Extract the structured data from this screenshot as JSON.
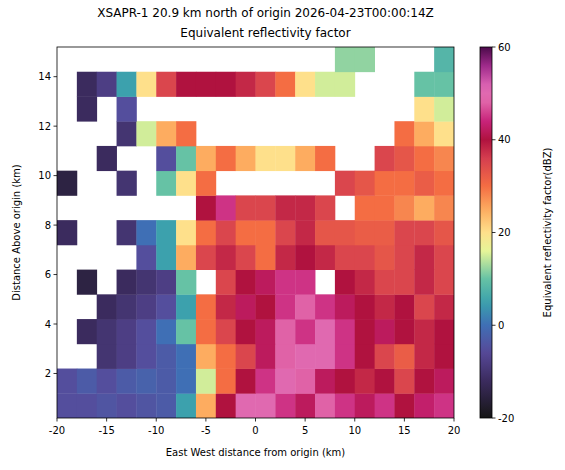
{
  "chart_data": {
    "type": "heatmap",
    "title": "XSAPR-1 20.9 km north of origin 2026-04-23T00:00:14Z",
    "subtitle": "Equivalent reflectivity factor",
    "x_label": "East West distance from origin (km)",
    "y_label": "Distance Above origin (km)",
    "xlim": [
      -20,
      20
    ],
    "xticks": [
      -20,
      -15,
      -10,
      -5,
      0,
      5,
      10,
      15,
      20
    ],
    "ylim": [
      0.2,
      15.2
    ],
    "yticks": [
      2,
      4,
      6,
      8,
      10,
      12,
      14
    ],
    "x_edges": [
      -20,
      -18,
      -16,
      -14,
      -12,
      -10,
      -8,
      -6,
      -4,
      -2,
      0,
      2,
      4,
      6,
      8,
      10,
      12,
      14,
      16,
      18,
      20
    ],
    "y_edges": [
      0.2,
      1.2,
      2.2,
      3.2,
      4.2,
      5.2,
      6.2,
      7.2,
      8.2,
      9.2,
      10.2,
      11.2,
      12.2,
      13.2,
      14.2,
      15.2
    ],
    "cells": [
      [
        -5,
        -5,
        -4,
        -5,
        -4,
        -3,
        5,
        25,
        40,
        50,
        50,
        45,
        42,
        48,
        45,
        42,
        45,
        40,
        43,
        45
      ],
      [
        -5,
        -3,
        -5,
        -3,
        -2,
        -3,
        0,
        15,
        30,
        40,
        45,
        50,
        48,
        42,
        40,
        38,
        40,
        35,
        40,
        42
      ],
      [
        null,
        null,
        -10,
        -8,
        -5,
        -3,
        0,
        25,
        30,
        35,
        42,
        48,
        50,
        50,
        45,
        40,
        35,
        32,
        38,
        40
      ],
      [
        null,
        -12,
        -10,
        -8,
        -5,
        0,
        10,
        30,
        35,
        40,
        42,
        48,
        45,
        50,
        45,
        40,
        42,
        40,
        38,
        40
      ],
      [
        null,
        null,
        -12,
        -10,
        -8,
        -5,
        5,
        30,
        38,
        42,
        40,
        45,
        48,
        45,
        42,
        40,
        38,
        40,
        35,
        38
      ],
      [
        null,
        -15,
        null,
        -12,
        -10,
        -8,
        10,
        null,
        35,
        40,
        42,
        45,
        45,
        null,
        40,
        38,
        35,
        35,
        38,
        35
      ],
      [
        null,
        null,
        null,
        null,
        -5,
        5,
        25,
        35,
        38,
        35,
        30,
        38,
        40,
        38,
        35,
        35,
        33,
        35,
        38,
        35
      ],
      [
        -12,
        null,
        null,
        -10,
        0,
        5,
        20,
        30,
        35,
        30,
        30,
        35,
        38,
        33,
        33,
        32,
        32,
        35,
        35,
        33
      ],
      [
        null,
        null,
        null,
        null,
        null,
        null,
        null,
        40,
        45,
        35,
        35,
        38,
        38,
        35,
        null,
        30,
        30,
        28,
        25,
        28
      ],
      [
        -15,
        null,
        null,
        -10,
        null,
        10,
        20,
        30,
        null,
        null,
        null,
        null,
        null,
        null,
        35,
        33,
        30,
        30,
        32,
        30
      ],
      [
        null,
        null,
        -12,
        null,
        null,
        -5,
        10,
        25,
        30,
        25,
        20,
        20,
        25,
        30,
        null,
        null,
        35,
        33,
        30,
        28
      ],
      [
        null,
        null,
        null,
        -10,
        15,
        25,
        30,
        null,
        null,
        null,
        null,
        null,
        null,
        null,
        null,
        null,
        null,
        30,
        25,
        20
      ],
      [
        null,
        -12,
        null,
        -5,
        null,
        null,
        null,
        null,
        null,
        null,
        null,
        null,
        null,
        null,
        null,
        null,
        null,
        null,
        20,
        15
      ],
      [
        null,
        -12,
        -8,
        5,
        20,
        35,
        40,
        40,
        40,
        38,
        35,
        30,
        20,
        15,
        15,
        null,
        null,
        null,
        10,
        10
      ],
      [
        null,
        null,
        null,
        null,
        null,
        null,
        null,
        null,
        null,
        null,
        null,
        null,
        null,
        null,
        12,
        12,
        null,
        null,
        null,
        8
      ]
    ],
    "colorbar": {
      "label": "Equivalent reflectivity factor(dBZ)",
      "range": [
        -20,
        60
      ],
      "ticks": [
        -20,
        0,
        20,
        40,
        60
      ]
    }
  }
}
